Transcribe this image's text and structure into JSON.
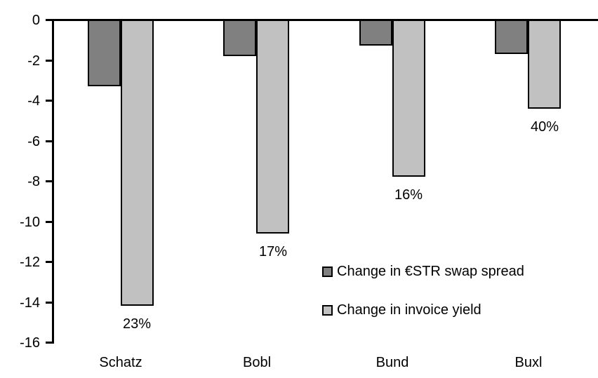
{
  "chart_data": {
    "type": "bar",
    "title": "",
    "categories": [
      "Schatz",
      "Bobl",
      "Bund",
      "Buxl"
    ],
    "series": [
      {
        "name": "Change in €STR swap spread",
        "color": "#808080",
        "values": [
          -3.3,
          -1.8,
          -1.3,
          -1.7
        ]
      },
      {
        "name": "Change in invoice yield",
        "color": "#c1c1c1",
        "values": [
          -14.2,
          -10.6,
          -7.8,
          -4.4
        ],
        "bar_labels": [
          "23%",
          "17%",
          "16%",
          "40%"
        ]
      }
    ],
    "xlabel": "",
    "ylabel": "",
    "ylim": [
      -16,
      0
    ],
    "yticks": [
      0,
      -2,
      -4,
      -6,
      -8,
      -10,
      -12,
      -14,
      -16
    ],
    "grid": false,
    "legend_position": "inside-right-middle",
    "axis_color": "#000000",
    "background": "#ffffff"
  }
}
